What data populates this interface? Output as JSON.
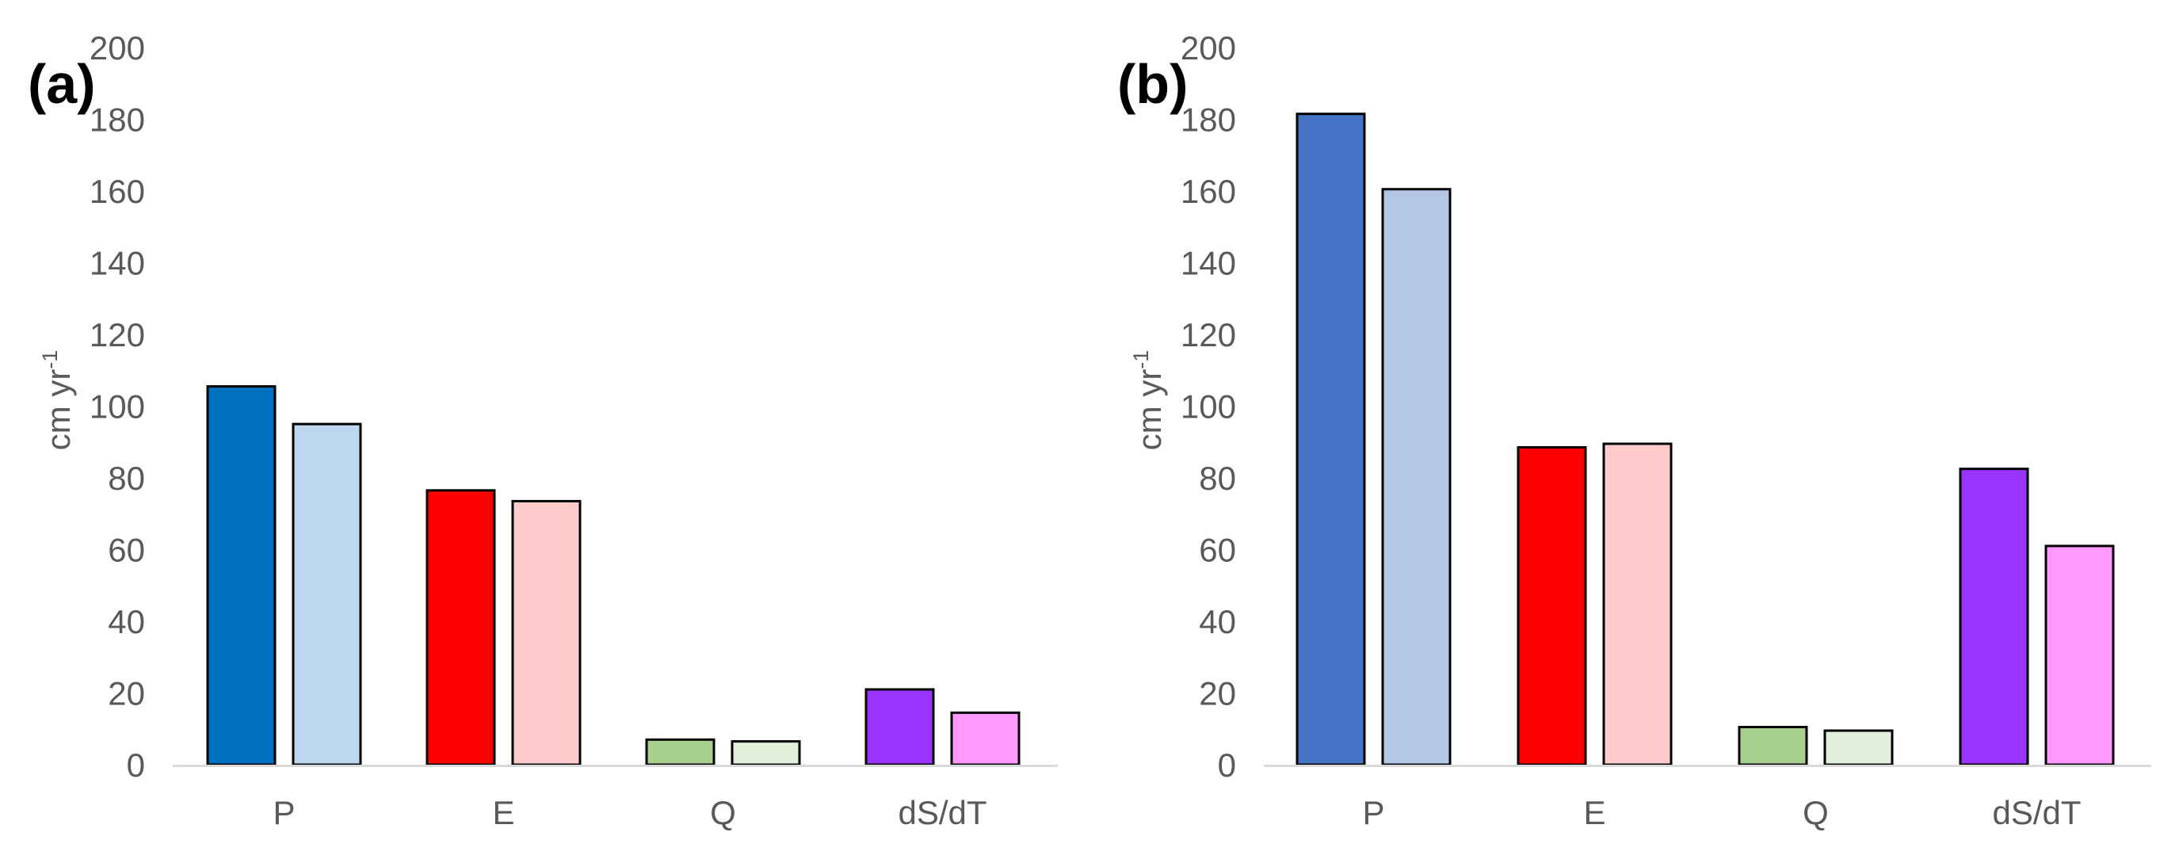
{
  "chart_data": [
    {
      "type": "bar",
      "panel_label": "(a)",
      "ylabel_main": "cm yr",
      "ylabel_sup": "-1",
      "ylim": [
        0,
        200
      ],
      "yticks": [
        0,
        20,
        40,
        60,
        80,
        100,
        120,
        140,
        160,
        180,
        200
      ],
      "grid": false,
      "categories": [
        "P",
        "E",
        "Q",
        "dS/dT"
      ],
      "series": [
        {
          "values": [
            105.5,
            76.5,
            7.0,
            21.0
          ],
          "colors": [
            "#0070C0",
            "#FF0000",
            "#A9D18E",
            "#9933FF"
          ]
        },
        {
          "values": [
            95.0,
            73.5,
            6.5,
            14.5
          ],
          "colors": [
            "#BDD7EE",
            "#FFCCCC",
            "#E2EFDA",
            "#FF99FF"
          ]
        }
      ]
    },
    {
      "type": "bar",
      "panel_label": "(b)",
      "ylabel_main": "cm yr",
      "ylabel_sup": "-1",
      "ylim": [
        0,
        200
      ],
      "yticks": [
        0,
        20,
        40,
        60,
        80,
        100,
        120,
        140,
        160,
        180,
        200
      ],
      "grid": false,
      "categories": [
        "P",
        "E",
        "Q",
        "dS/dT"
      ],
      "series": [
        {
          "values": [
            181.5,
            88.5,
            10.5,
            82.5
          ],
          "colors": [
            "#4472C4",
            "#FF0000",
            "#A9D18E",
            "#9933FF"
          ]
        },
        {
          "values": [
            160.5,
            89.5,
            9.5,
            61.0
          ],
          "colors": [
            "#B4C7E7",
            "#FFCCCC",
            "#E2EFDA",
            "#FF99FF"
          ]
        }
      ]
    }
  ]
}
